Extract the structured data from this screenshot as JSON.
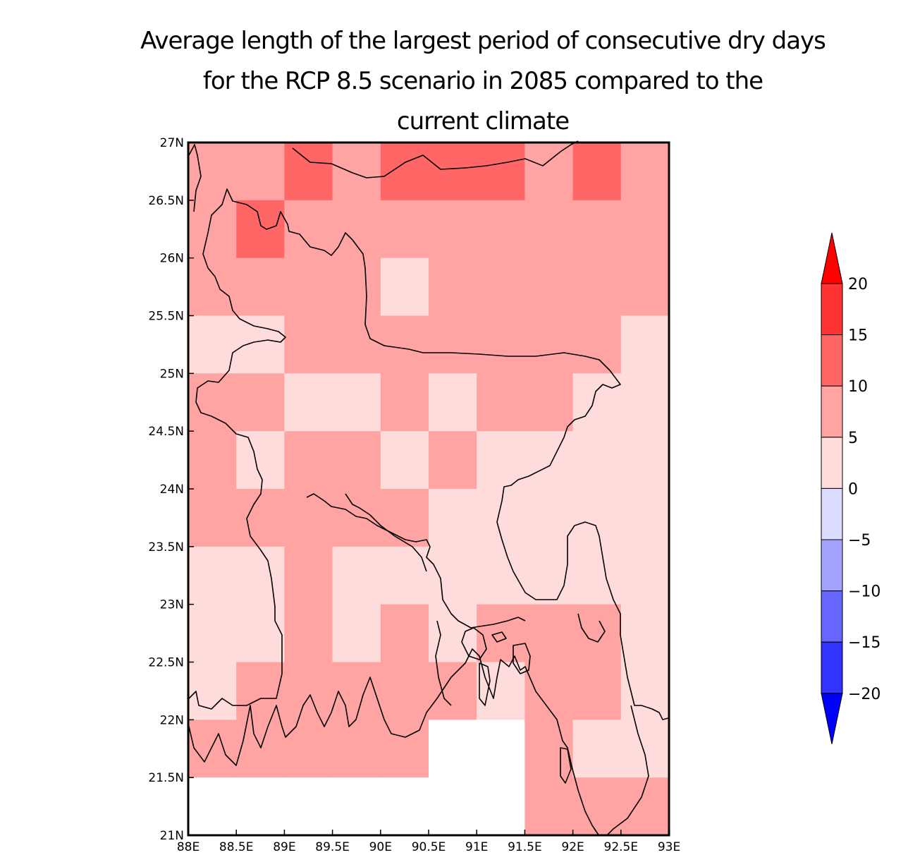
{
  "title": {
    "line1": "Average length of the largest period of consecutive dry days",
    "line2": "for the RCP 8.5 scenario in 2085 compared to the",
    "line3": "current climate"
  },
  "map": {
    "lon_range": [
      88,
      93
    ],
    "lat_range": [
      21,
      27
    ],
    "x_ticks": [
      {
        "value": 88,
        "label": "88E"
      },
      {
        "value": 88.5,
        "label": "88.5E"
      },
      {
        "value": 89,
        "label": "89E"
      },
      {
        "value": 89.5,
        "label": "89.5E"
      },
      {
        "value": 90,
        "label": "90E"
      },
      {
        "value": 90.5,
        "label": "90.5E"
      },
      {
        "value": 91,
        "label": "91E"
      },
      {
        "value": 91.5,
        "label": "91.5E"
      },
      {
        "value": 92,
        "label": "92E"
      },
      {
        "value": 92.5,
        "label": "92.5E"
      },
      {
        "value": 93,
        "label": "93E"
      }
    ],
    "y_ticks": [
      {
        "value": 27,
        "label": "27N"
      },
      {
        "value": 26.5,
        "label": "26.5N"
      },
      {
        "value": 26,
        "label": "26N"
      },
      {
        "value": 25.5,
        "label": "25.5N"
      },
      {
        "value": 25,
        "label": "25N"
      },
      {
        "value": 24.5,
        "label": "24.5N"
      },
      {
        "value": 24,
        "label": "24N"
      },
      {
        "value": 23.5,
        "label": "23.5N"
      },
      {
        "value": 23,
        "label": "23N"
      },
      {
        "value": 22.5,
        "label": "22.5N"
      },
      {
        "value": 22,
        "label": "22N"
      },
      {
        "value": 21.5,
        "label": "21.5N"
      },
      {
        "value": 21,
        "label": "21N"
      }
    ],
    "grid": {
      "lon_start": 88,
      "lat_top": 27,
      "cell_lon": 0.5,
      "cell_lat": 0.5,
      "classes_top_to_bottom": [
        [
          2,
          2,
          3,
          2,
          3,
          3,
          3,
          2,
          3,
          2
        ],
        [
          2,
          3,
          2,
          2,
          2,
          2,
          2,
          2,
          2,
          2
        ],
        [
          2,
          2,
          2,
          2,
          1,
          2,
          2,
          2,
          2,
          2
        ],
        [
          1,
          1,
          2,
          2,
          2,
          2,
          2,
          2,
          2,
          1
        ],
        [
          2,
          2,
          1,
          1,
          2,
          1,
          2,
          2,
          1,
          1
        ],
        [
          2,
          1,
          2,
          2,
          1,
          2,
          1,
          1,
          1,
          1
        ],
        [
          2,
          2,
          2,
          2,
          2,
          1,
          1,
          1,
          1,
          1
        ],
        [
          1,
          1,
          2,
          1,
          1,
          1,
          1,
          1,
          1,
          1
        ],
        [
          1,
          1,
          2,
          1,
          2,
          1,
          2,
          2,
          2,
          1
        ],
        [
          1,
          2,
          2,
          2,
          2,
          2,
          1,
          2,
          2,
          1
        ],
        [
          2,
          2,
          2,
          2,
          2,
          -1,
          -1,
          2,
          1,
          1
        ],
        [
          -1,
          -1,
          -1,
          -1,
          -1,
          -1,
          -1,
          2,
          2,
          2
        ]
      ]
    }
  },
  "colorbar": {
    "levels": [
      20,
      15,
      10,
      5,
      0,
      -5,
      -10,
      -15,
      -20
    ],
    "labels": [
      "20",
      "15",
      "10",
      "5",
      "0",
      "−5",
      "−10",
      "−15",
      "−20"
    ],
    "colors_top_to_bottom": [
      "#ff0000",
      "#ff3333",
      "#ff6666",
      "#ffa3a3",
      "#ffdcdc",
      "#dcdcff",
      "#a3a3ff",
      "#6666ff",
      "#3333ff",
      "#0000ff"
    ]
  },
  "class_colors": {
    "1": "#ffdcdc",
    "2": "#ffa3a3",
    "3": "#ff6666",
    "-1": "#ffffff"
  }
}
